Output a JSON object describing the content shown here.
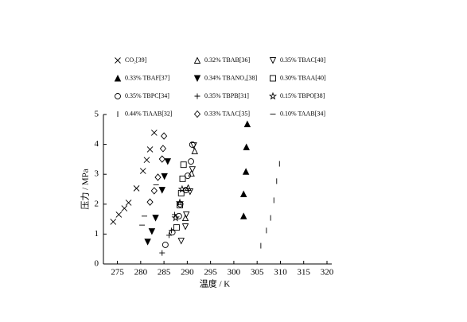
{
  "chart_data": {
    "type": "scatter",
    "x_label": "温度 / K",
    "y_label": "压力 / MPa",
    "xlim": [
      272,
      320
    ],
    "xticks": [
      275,
      280,
      285,
      290,
      295,
      300,
      305,
      310,
      315,
      320
    ],
    "ylim": [
      0,
      5
    ],
    "yticks": [
      0,
      1,
      2,
      3,
      4,
      5
    ],
    "color": "#000000",
    "series": [
      {
        "name": "CO₂[39]",
        "marker": "x",
        "x": [
          274.1,
          275.3,
          276.5,
          277.4,
          279.1,
          280.5,
          281.3,
          282,
          282.9
        ],
        "values": [
          1.41,
          1.65,
          1.86,
          2.05,
          2.53,
          3.11,
          3.48,
          3.83,
          4.39
        ]
      },
      {
        "name": "0.32% TBAB[36]",
        "marker": "triangle-up",
        "x": [
          289.6,
          290.2,
          290.9,
          291.6
        ],
        "values": [
          1.54,
          2.55,
          3.03,
          3.78
        ]
      },
      {
        "name": "0.35% TBAC[40]",
        "marker": "triangle-down",
        "x": [
          288.7,
          289.6,
          289.8,
          290.6,
          291.1,
          291.4
        ],
        "values": [
          0.77,
          1.25,
          1.65,
          2.42,
          3.16,
          3.96
        ]
      },
      {
        "name": "0.33% TBAF[37]",
        "marker": "triangle-up-filled",
        "x": [
          302.1,
          302.1,
          302.6,
          302.7,
          302.9
        ],
        "values": [
          1.6,
          2.34,
          3.09,
          3.91,
          4.68
        ]
      },
      {
        "name": "0.34% TBANO₃[38]",
        "marker": "triangle-down-filled",
        "x": [
          281.5,
          282.4,
          283.2,
          284.6,
          285.1,
          285.8
        ],
        "values": [
          0.74,
          1.09,
          1.54,
          2.47,
          2.93,
          3.43
        ]
      },
      {
        "name": "0.30% TBAA[40]",
        "marker": "square",
        "x": [
          287.7,
          288.4,
          288.7,
          289,
          289.2
        ],
        "values": [
          1.22,
          1.97,
          2.37,
          2.85,
          3.32
        ]
      },
      {
        "name": "0.35% TBPC[34]",
        "marker": "circle",
        "x": [
          285.3,
          286.8,
          288.2,
          288.5,
          289.7,
          290.1,
          290.8,
          291.1
        ],
        "values": [
          0.64,
          1.06,
          1.6,
          2.0,
          2.47,
          2.95,
          3.43,
          3.99
        ]
      },
      {
        "name": "0.35% TBPB[31]",
        "marker": "plus",
        "x": [
          284.6,
          286.1,
          286.6,
          287.3
        ],
        "values": [
          0.37,
          0.96,
          1.12,
          1.65
        ]
      },
      {
        "name": "0.15% TBPO[38]",
        "marker": "star",
        "x": [
          287.5,
          288.4,
          288.9
        ],
        "values": [
          1.54,
          2.05,
          2.5
        ]
      },
      {
        "name": "0.44% TiAAB[32]",
        "marker": "vline",
        "x": [
          305.8,
          307,
          307.9,
          308.6,
          309.2,
          309.8
        ],
        "values": [
          0.61,
          1.12,
          1.54,
          2.13,
          2.77,
          3.35
        ]
      },
      {
        "name": "0.33% TAAC[35]",
        "marker": "diamond",
        "x": [
          282,
          282.9,
          283.7,
          284.6,
          284.8,
          285
        ],
        "values": [
          2.07,
          2.45,
          2.9,
          3.51,
          3.86,
          4.28
        ]
      },
      {
        "name": "0.10% TAAB[34]",
        "marker": "hline",
        "x": [
          280.3,
          280.8,
          283.3
        ],
        "values": [
          1.3,
          1.6,
          2.65
        ]
      }
    ]
  }
}
